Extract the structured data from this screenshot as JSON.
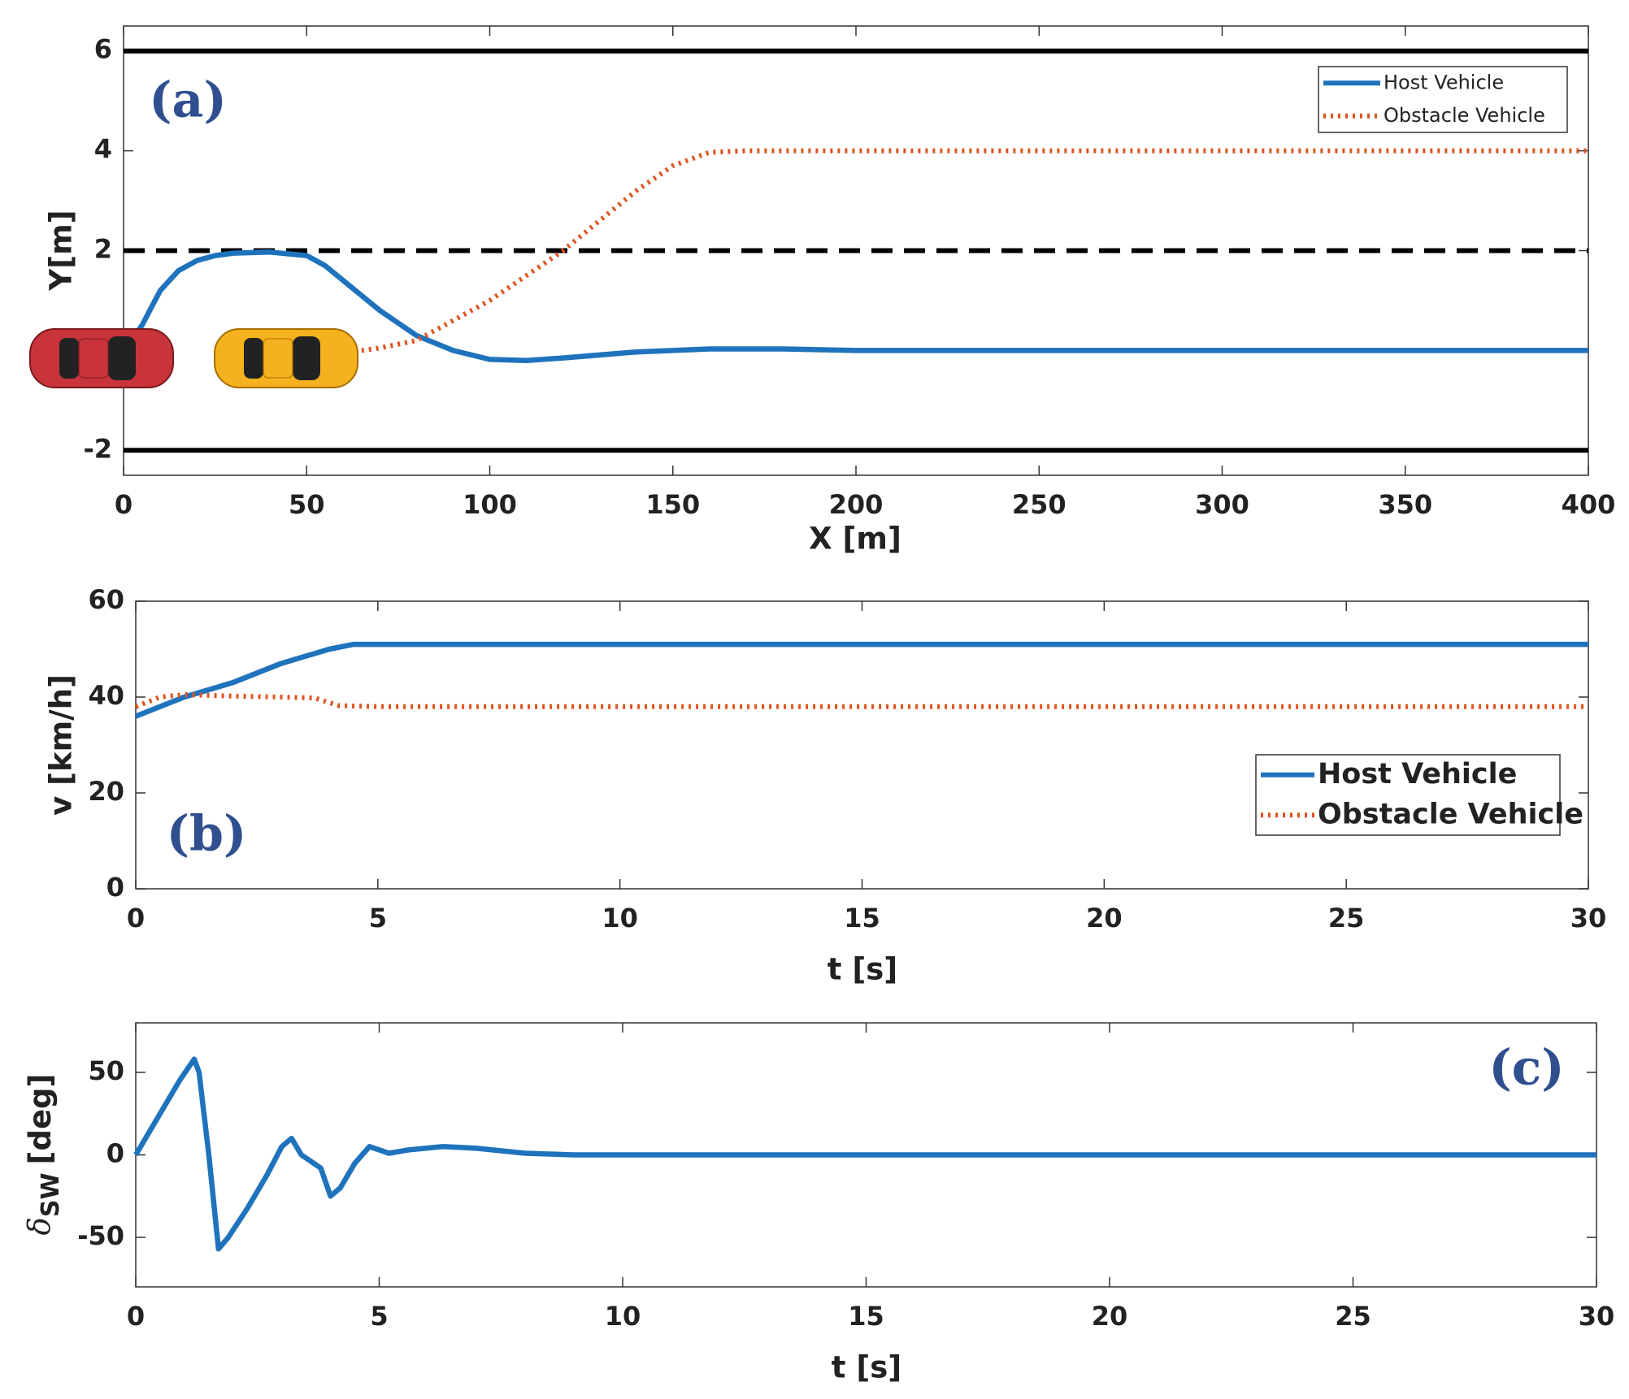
{
  "chart_data": [
    {
      "type": "line",
      "panel_label": "(a)",
      "xlabel": "X [m]",
      "ylabel": "Y[m]",
      "xlim": [
        0,
        400
      ],
      "xticks": [
        0,
        50,
        100,
        150,
        200,
        250,
        300,
        350,
        400
      ],
      "ylim": [
        -2.5,
        6.5
      ],
      "yticks": [
        -2,
        2,
        4,
        6
      ],
      "reference_lines": [
        {
          "value": 6,
          "style": "solid"
        },
        {
          "value": 2,
          "style": "dashed"
        },
        {
          "value": -2,
          "style": "solid"
        }
      ],
      "legend": "upper right",
      "series": [
        {
          "name": "Host Vehicle",
          "color": "#1f73bd",
          "style": "solid",
          "x": [
            0,
            5,
            10,
            15,
            20,
            25,
            30,
            40,
            50,
            55,
            60,
            70,
            80,
            90,
            100,
            110,
            120,
            140,
            160,
            180,
            200,
            250,
            300,
            400
          ],
          "values": [
            0,
            0.5,
            1.2,
            1.6,
            1.8,
            1.9,
            1.95,
            1.97,
            1.9,
            1.7,
            1.4,
            0.8,
            0.3,
            0.0,
            -0.18,
            -0.2,
            -0.15,
            -0.03,
            0.03,
            0.03,
            0,
            0,
            0,
            0
          ]
        },
        {
          "name": "Obstacle Vehicle",
          "color": "#e0531f",
          "style": "dotted",
          "x": [
            65,
            70,
            80,
            90,
            100,
            110,
            120,
            130,
            140,
            150,
            160,
            170,
            200,
            300,
            400
          ],
          "values": [
            0,
            0.05,
            0.2,
            0.6,
            1.0,
            1.5,
            2.0,
            2.6,
            3.2,
            3.7,
            3.97,
            4,
            4,
            4,
            4
          ]
        }
      ]
    },
    {
      "type": "line",
      "panel_label": "(b)",
      "xlabel": "t [s]",
      "ylabel": "v [km/h]",
      "xlim": [
        0,
        30
      ],
      "xticks": [
        0,
        5,
        10,
        15,
        20,
        25,
        30
      ],
      "ylim": [
        0,
        60
      ],
      "yticks": [
        0,
        20,
        40,
        60
      ],
      "legend": "lower right",
      "series": [
        {
          "name": "Host Vehicle",
          "color": "#1f73bd",
          "style": "solid",
          "x": [
            0,
            1,
            2,
            3,
            4,
            4.5,
            5,
            10,
            20,
            30
          ],
          "values": [
            36,
            40,
            43,
            47,
            50,
            51,
            51,
            51,
            51,
            51
          ]
        },
        {
          "name": "Obstacle Vehicle",
          "color": "#e0531f",
          "style": "dotted",
          "x": [
            0,
            0.5,
            1,
            2,
            3,
            3.7,
            4.2,
            5,
            10,
            20,
            30
          ],
          "values": [
            38,
            40,
            40.5,
            40.2,
            40,
            39.8,
            38.2,
            38,
            38,
            38,
            38
          ]
        }
      ]
    },
    {
      "type": "line",
      "panel_label": "(c)",
      "xlabel": "t [s]",
      "ylabel": {
        "symbol": "δ",
        "subscript": "SW",
        "unit": "[deg]"
      },
      "xlim": [
        0,
        30
      ],
      "xticks": [
        0,
        5,
        10,
        15,
        20,
        25,
        30
      ],
      "ylim": [
        -80,
        80
      ],
      "yticks": [
        -50,
        0,
        50
      ],
      "series": [
        {
          "color": "#1f73bd",
          "style": "solid",
          "x": [
            0,
            0.3,
            0.6,
            0.9,
            1.2,
            1.3,
            1.5,
            1.7,
            1.9,
            2.3,
            2.7,
            3.0,
            3.2,
            3.4,
            3.6,
            3.8,
            4.0,
            4.2,
            4.5,
            4.8,
            5.2,
            5.6,
            6.3,
            7,
            8,
            9,
            10,
            30
          ],
          "values": [
            0,
            15,
            30,
            45,
            58,
            50,
            0,
            -57,
            -50,
            -32,
            -12,
            5,
            10,
            0,
            -4,
            -8,
            -25,
            -20,
            -5,
            5,
            1,
            3,
            5,
            4,
            1,
            0,
            0,
            0
          ]
        }
      ]
    }
  ]
}
